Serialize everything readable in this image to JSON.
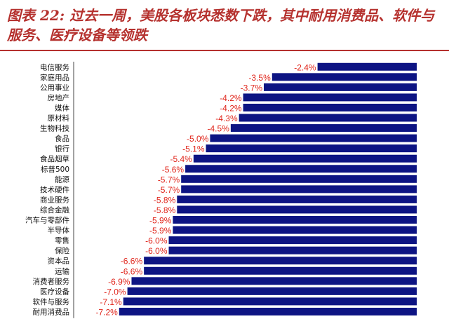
{
  "title": "图表 22: 过去一周，美股各板块悉数下跌，其中耐用消费品、软件与服务、医疗设备等领跌",
  "colors": {
    "bar": "#0d1483",
    "value_label": "#e0251b",
    "title": "#b5312e"
  },
  "chart_data": {
    "type": "bar",
    "orientation": "horizontal",
    "categories": [
      "电信服务",
      "家庭用品",
      "公用事业",
      "房地产",
      "媒体",
      "原材料",
      "生物科技",
      "食品",
      "银行",
      "食品烟草",
      "标普500",
      "能源",
      "技术硬件",
      "商业服务",
      "综合金融",
      "汽车与零部件",
      "半导体",
      "零售",
      "保险",
      "资本品",
      "运输",
      "消费者服务",
      "医疗设备",
      "软件与服务",
      "耐用消费品"
    ],
    "values": [
      -2.4,
      -3.5,
      -3.7,
      -4.2,
      -4.2,
      -4.3,
      -4.5,
      -5.0,
      -5.1,
      -5.4,
      -5.6,
      -5.7,
      -5.7,
      -5.8,
      -5.8,
      -5.9,
      -5.9,
      -6.0,
      -6.0,
      -6.6,
      -6.6,
      -6.9,
      -7.0,
      -7.1,
      -7.2
    ],
    "value_labels": [
      "-2.4%",
      "-3.5%",
      "-3.7%",
      "-4.2%",
      "-4.2%",
      "-4.3%",
      "-4.5%",
      "-5.0%",
      "-5.1%",
      "-5.4%",
      "-5.6%",
      "-5.7%",
      "-5.7%",
      "-5.8%",
      "-5.8%",
      "-5.9%",
      "-5.9%",
      "-6.0%",
      "-6.0%",
      "-6.6%",
      "-6.6%",
      "-6.9%",
      "-7.0%",
      "-7.1%",
      "-7.2%"
    ],
    "xlim": [
      -8.3,
      0
    ],
    "grid": false,
    "legend": "none"
  }
}
